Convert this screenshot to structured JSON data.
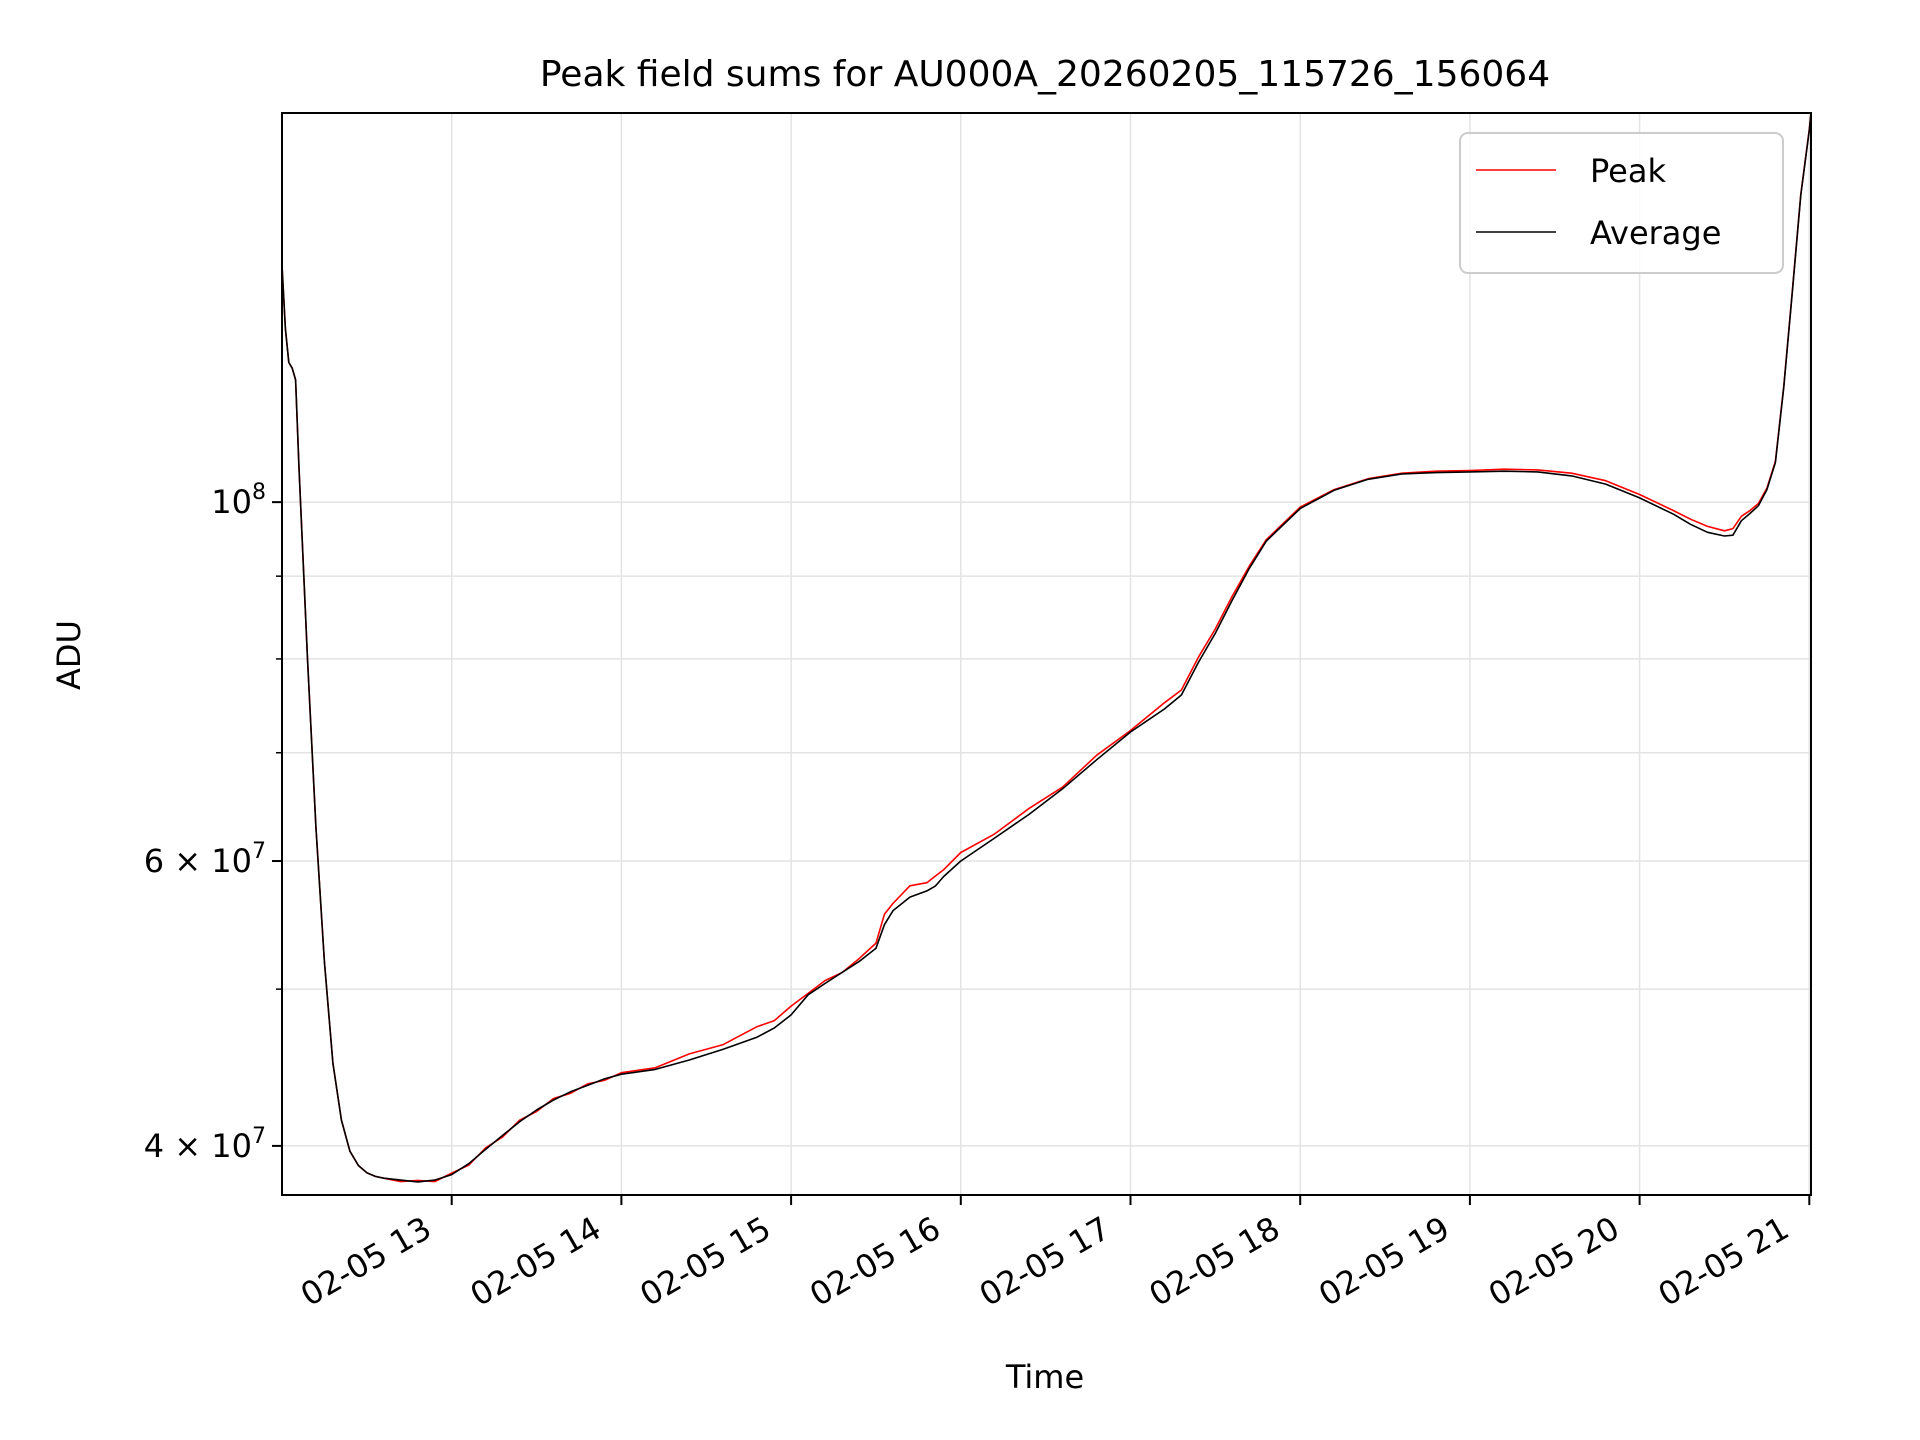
{
  "chart_data": {
    "type": "line",
    "title": "Peak field sums for AU000A_20260205_115726_156064",
    "xlabel": "Time",
    "ylabel": "ADU",
    "yscale": "log",
    "grid": true,
    "legend_position": "top-right",
    "xlim": [
      12.0,
      21.01
    ],
    "ylim": [
      37300000,
      174000000
    ],
    "x_ticks": [
      {
        "value": 13,
        "label": "02-05 13"
      },
      {
        "value": 14,
        "label": "02-05 14"
      },
      {
        "value": 15,
        "label": "02-05 15"
      },
      {
        "value": 16,
        "label": "02-05 16"
      },
      {
        "value": 17,
        "label": "02-05 17"
      },
      {
        "value": 18,
        "label": "02-05 18"
      },
      {
        "value": 19,
        "label": "02-05 19"
      },
      {
        "value": 20,
        "label": "02-05 20"
      },
      {
        "value": 21,
        "label": "02-05 21"
      }
    ],
    "y_major_ticks": [
      {
        "value": 40000000,
        "mantissa": "4",
        "times": "×",
        "base": "10",
        "exp": "7"
      },
      {
        "value": 60000000,
        "mantissa": "6",
        "times": "×",
        "base": "10",
        "exp": "7"
      },
      {
        "value": 100000000,
        "mantissa": "",
        "times": "",
        "base": "10",
        "exp": "8"
      }
    ],
    "y_minor_gridlines": [
      50000000,
      70000000,
      80000000,
      90000000
    ],
    "series": [
      {
        "name": "Peak",
        "color": "#ff0000",
        "x": [
          12.0,
          12.02,
          12.04,
          12.06,
          12.08,
          12.1,
          12.15,
          12.2,
          12.25,
          12.3,
          12.35,
          12.4,
          12.45,
          12.5,
          12.55,
          12.6,
          12.7,
          12.8,
          12.9,
          13.0,
          13.1,
          13.2,
          13.3,
          13.4,
          13.5,
          13.6,
          13.7,
          13.8,
          13.9,
          14.0,
          14.2,
          14.4,
          14.6,
          14.8,
          14.9,
          15.0,
          15.1,
          15.2,
          15.3,
          15.4,
          15.5,
          15.55,
          15.6,
          15.7,
          15.8,
          15.85,
          15.9,
          16.0,
          16.2,
          16.4,
          16.6,
          16.8,
          17.0,
          17.2,
          17.3,
          17.4,
          17.5,
          17.6,
          17.7,
          17.8,
          18.0,
          18.2,
          18.4,
          18.6,
          18.8,
          19.0,
          19.2,
          19.4,
          19.6,
          19.8,
          20.0,
          20.2,
          20.3,
          20.4,
          20.5,
          20.55,
          20.6,
          20.65,
          20.7,
          20.75,
          20.8,
          20.85,
          20.9,
          20.95,
          21.0,
          21.01
        ],
        "y": [
          140000000,
          128000000,
          122000000,
          121000000,
          119000000,
          105000000,
          80000000,
          63000000,
          52000000,
          45000000,
          41500000,
          39700000,
          38900000,
          38500000,
          38300000,
          38200000,
          38100000,
          38000000,
          38100000,
          38400000,
          39000000,
          39800000,
          40600000,
          41400000,
          42100000,
          42700000,
          43200000,
          43600000,
          44000000,
          44300000,
          44800000,
          45500000,
          46300000,
          47300000,
          47900000,
          48700000,
          49800000,
          50500000,
          51300000,
          52100000,
          53500000,
          55500000,
          56600000,
          57800000,
          58300000,
          58600000,
          59400000,
          60600000,
          62500000,
          64500000,
          66800000,
          69600000,
          72400000,
          75000000,
          76700000,
          80200000,
          83500000,
          87500000,
          91300000,
          94800000,
          99300000,
          101800000,
          103400000,
          104200000,
          104500000,
          104600000,
          104800000,
          104700000,
          104200000,
          103100000,
          101100000,
          98800000,
          97600000,
          96600000,
          96000000,
          96300000,
          98000000,
          98800000,
          99800000,
          102000000,
          106000000,
          118000000,
          135000000,
          155000000,
          170000000,
          174000000
        ]
      },
      {
        "name": "Average",
        "color": "#000000",
        "x": [
          12.0,
          12.02,
          12.04,
          12.06,
          12.08,
          12.1,
          12.15,
          12.2,
          12.25,
          12.3,
          12.35,
          12.4,
          12.45,
          12.5,
          12.55,
          12.6,
          12.7,
          12.8,
          12.9,
          13.0,
          13.1,
          13.2,
          13.3,
          13.4,
          13.5,
          13.6,
          13.7,
          13.8,
          13.9,
          14.0,
          14.2,
          14.4,
          14.6,
          14.8,
          14.9,
          15.0,
          15.1,
          15.2,
          15.3,
          15.4,
          15.5,
          15.55,
          15.6,
          15.7,
          15.8,
          15.85,
          15.9,
          16.0,
          16.2,
          16.4,
          16.6,
          16.8,
          17.0,
          17.2,
          17.3,
          17.4,
          17.5,
          17.6,
          17.7,
          17.8,
          18.0,
          18.2,
          18.4,
          18.6,
          18.8,
          19.0,
          19.2,
          19.4,
          19.6,
          19.8,
          20.0,
          20.2,
          20.3,
          20.4,
          20.5,
          20.55,
          20.6,
          20.65,
          20.7,
          20.75,
          20.8,
          20.85,
          20.9,
          20.95,
          21.0,
          21.01
        ],
        "y": [
          140000000,
          128000000,
          122000000,
          121000000,
          119000000,
          105000000,
          80000000,
          63000000,
          52000000,
          45000000,
          41500000,
          39700000,
          38900000,
          38500000,
          38300000,
          38200000,
          38100000,
          38000000,
          38100000,
          38400000,
          39000000,
          39800000,
          40600000,
          41400000,
          42100000,
          42700000,
          43200000,
          43600000,
          44000000,
          44300000,
          44600000,
          45200000,
          45900000,
          46700000,
          47300000,
          48200000,
          49600000,
          50400000,
          51200000,
          52000000,
          53000000,
          54800000,
          55900000,
          57000000,
          57500000,
          57900000,
          58700000,
          60000000,
          62000000,
          64100000,
          66500000,
          69300000,
          72100000,
          74500000,
          76000000,
          79600000,
          83000000,
          87000000,
          91000000,
          94600000,
          99100000,
          101700000,
          103300000,
          104100000,
          104300000,
          104400000,
          104500000,
          104400000,
          103800000,
          102600000,
          100600000,
          98300000,
          96900000,
          95800000,
          95300000,
          95400000,
          97400000,
          98400000,
          99500000,
          101800000,
          105800000,
          117800000,
          134800000,
          154800000,
          169800000,
          173800000
        ]
      }
    ]
  }
}
